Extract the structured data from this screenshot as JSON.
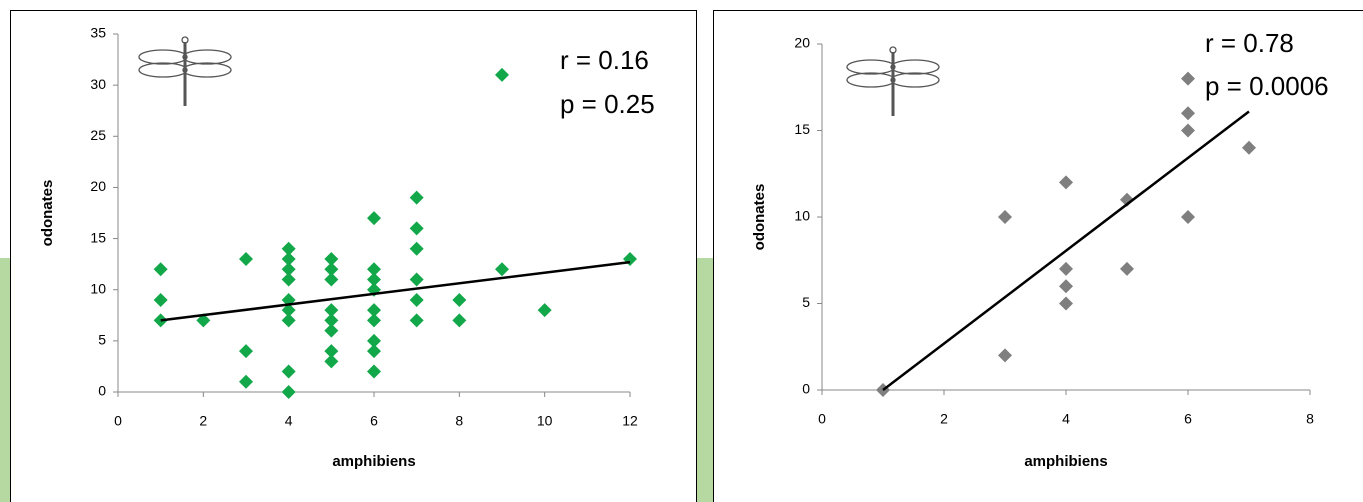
{
  "chart_data": [
    {
      "type": "scatter",
      "xlabel": "amphibiens",
      "ylabel": "odonates",
      "xlim": [
        0,
        12
      ],
      "ylim": [
        0,
        35
      ],
      "xticks": [
        0,
        2,
        4,
        6,
        8,
        10,
        12
      ],
      "yticks": [
        0,
        5,
        10,
        15,
        20,
        25,
        30,
        35
      ],
      "color": "#12a84a",
      "x": [
        1,
        1,
        1,
        2,
        3,
        3,
        3,
        4,
        4,
        4,
        4,
        4,
        4,
        4,
        4,
        4,
        5,
        5,
        5,
        5,
        5,
        5,
        5,
        5,
        6,
        6,
        6,
        6,
        6,
        6,
        6,
        6,
        6,
        7,
        7,
        7,
        7,
        7,
        7,
        8,
        8,
        9,
        9,
        10,
        12
      ],
      "y": [
        12,
        9,
        7,
        7,
        13,
        4,
        1,
        14,
        13,
        12,
        11,
        9,
        8,
        7,
        2,
        0,
        13,
        12,
        11,
        8,
        7,
        6,
        4,
        3,
        17,
        12,
        11,
        10,
        8,
        7,
        5,
        4,
        2,
        19,
        16,
        14,
        11,
        9,
        7,
        9,
        7,
        31,
        12,
        8,
        13
      ],
      "trendline": {
        "x": [
          1,
          12
        ],
        "y": [
          7,
          12.7
        ]
      },
      "annotations": [
        "r = 0.16",
        "p = 0.25"
      ]
    },
    {
      "type": "scatter",
      "xlabel": "amphibiens",
      "ylabel": "odonates",
      "xlim": [
        0,
        8
      ],
      "ylim": [
        0,
        20
      ],
      "xticks": [
        0,
        2,
        4,
        6,
        8
      ],
      "yticks": [
        0,
        5,
        10,
        15,
        20
      ],
      "color": "#7f7f7f",
      "x": [
        1,
        3,
        3,
        4,
        4,
        4,
        4,
        5,
        5,
        6,
        6,
        6,
        6,
        7
      ],
      "y": [
        0,
        10,
        2,
        12,
        7,
        6,
        5,
        11,
        7,
        18,
        16,
        15,
        10,
        14
      ],
      "trendline": {
        "x": [
          1,
          7
        ],
        "y": [
          0,
          16.1
        ]
      },
      "annotations": [
        "r = 0.78",
        "p = 0.0006"
      ]
    }
  ]
}
